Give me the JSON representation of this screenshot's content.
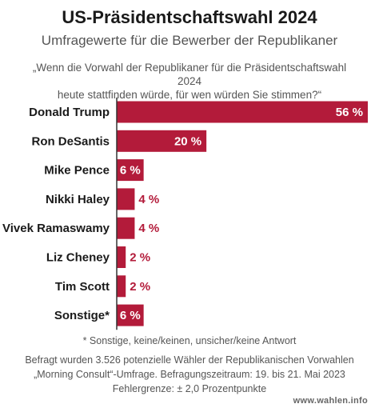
{
  "header": {
    "title": "US-Präsidentschaftswahl 2024",
    "subtitle": "Umfragewerte für die Bewerber der Republikaner",
    "question_line1": "„Wenn die Vorwahl der Republikaner für die Präsidentschaftswahl 2024",
    "question_line2": "heute stattfinden würde, für wen würden Sie stimmen?“"
  },
  "chart_data": {
    "type": "bar",
    "orientation": "horizontal",
    "categories": [
      "Donald Trump",
      "Ron DeSantis",
      "Mike Pence",
      "Nikki Haley",
      "Vivek Ramaswamy",
      "Liz Cheney",
      "Tim Scott",
      "Sonstige*"
    ],
    "values": [
      56,
      20,
      6,
      4,
      4,
      2,
      2,
      6
    ],
    "value_labels": [
      "56 %",
      "20 %",
      "6 %",
      "4 %",
      "4 %",
      "2 %",
      "2 %",
      "6 %"
    ],
    "unit": "%",
    "xlim": [
      0,
      56
    ],
    "grid": false,
    "colors": {
      "bar": "#b31b3a",
      "axis": "#333333"
    }
  },
  "footer": {
    "footnote": "* Sonstige, keine/keinen, unsicher/keine Antwort",
    "source_line1": "Befragt wurden 3.526 potenzielle Wähler der Republikanischen Vorwahlen",
    "source_line2": "„Morning Consult“-Umfrage. Befragungszeitraum: 19. bis 21. Mai 2023",
    "source_line3": "Fehlergrenze: ± 2,0 Prozentpunkte",
    "brand": "www.wahlen.info"
  }
}
